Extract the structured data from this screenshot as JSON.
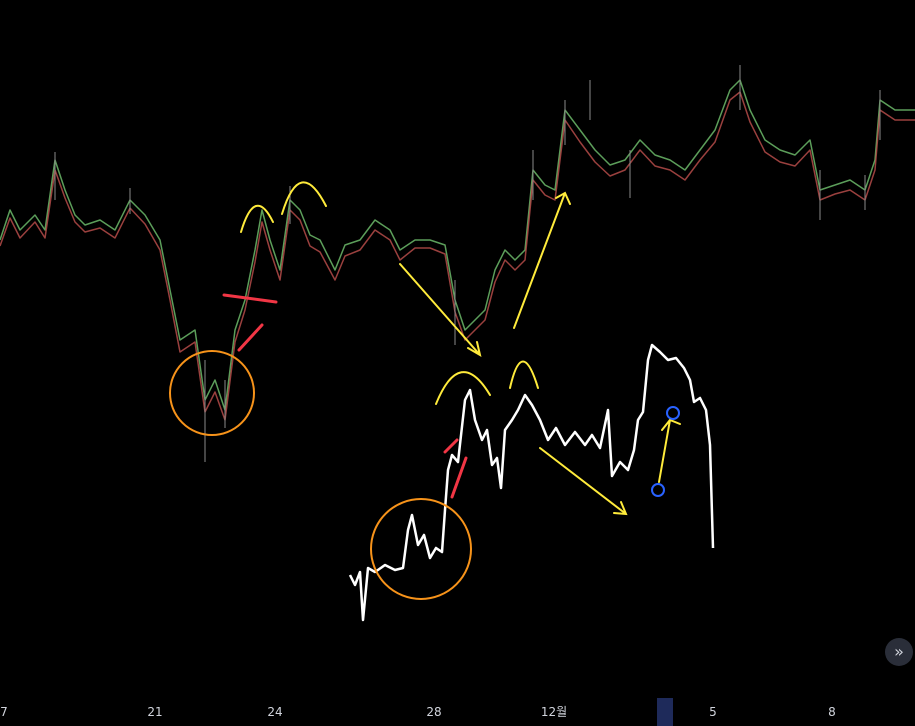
{
  "x_axis": {
    "labels": [
      "7",
      "21",
      "24",
      "28",
      "12월",
      "5",
      "8"
    ]
  },
  "scroll_button": {
    "label": "»"
  }
}
